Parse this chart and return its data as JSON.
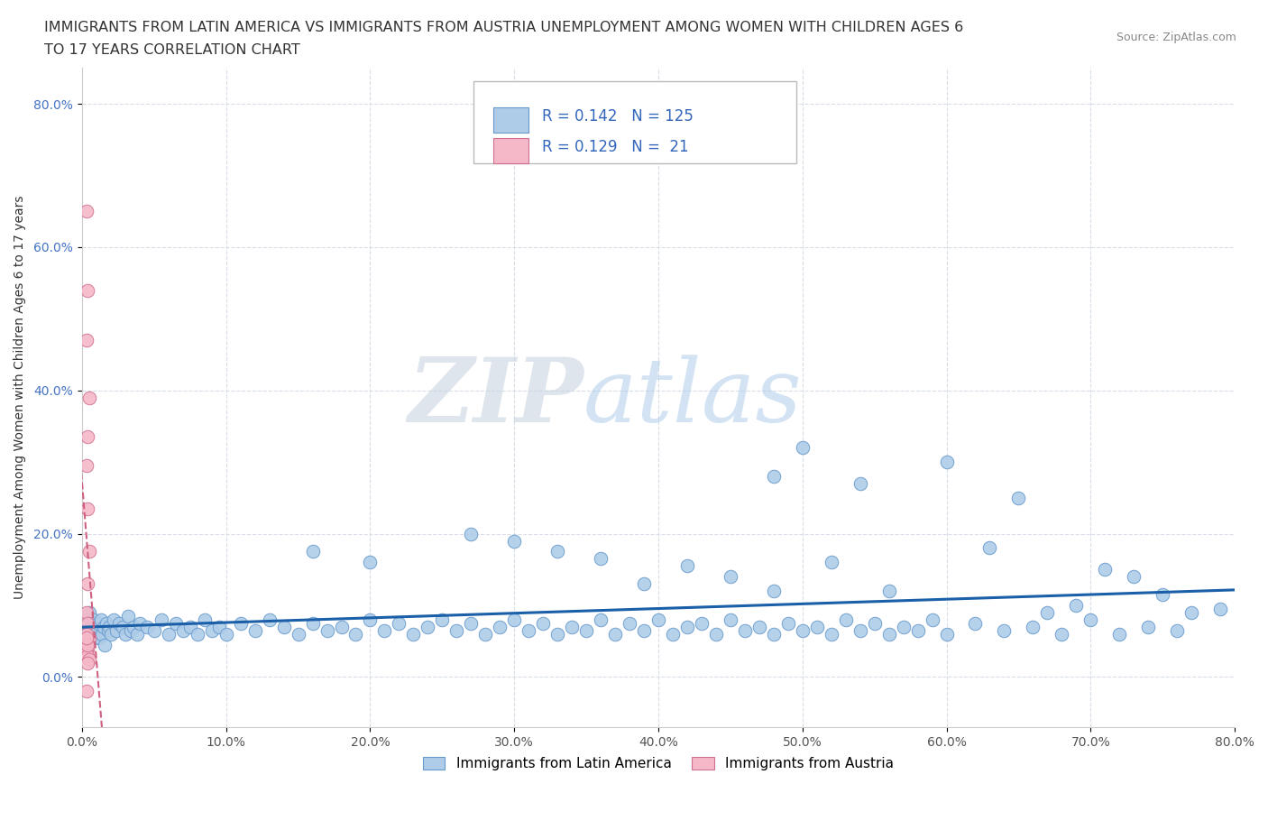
{
  "title_line1": "IMMIGRANTS FROM LATIN AMERICA VS IMMIGRANTS FROM AUSTRIA UNEMPLOYMENT AMONG WOMEN WITH CHILDREN AGES 6",
  "title_line2": "TO 17 YEARS CORRELATION CHART",
  "source_text": "Source: ZipAtlas.com",
  "ylabel": "Unemployment Among Women with Children Ages 6 to 17 years",
  "xlabel_blue": "Immigrants from Latin America",
  "xlabel_pink": "Immigrants from Austria",
  "R_blue": 0.142,
  "N_blue": 125,
  "R_pink": 0.129,
  "N_pink": 21,
  "blue_color": "#aecce8",
  "blue_edge_color": "#6699cc",
  "blue_line_color": "#1a5fa8",
  "pink_color": "#f5b8c8",
  "pink_edge_color": "#d07090",
  "pink_line_color": "#d06080",
  "grid_color": "#d8dde8",
  "watermark_color": "#dce5f0",
  "xlim": [
    0.0,
    0.8
  ],
  "ylim": [
    -0.07,
    0.85
  ],
  "xticks": [
    0.0,
    0.1,
    0.2,
    0.3,
    0.4,
    0.5,
    0.6,
    0.7,
    0.8
  ],
  "yticks": [
    0.0,
    0.2,
    0.4,
    0.6,
    0.8
  ],
  "blue_x": [
    0.001,
    0.002,
    0.003,
    0.004,
    0.005,
    0.006,
    0.007,
    0.008,
    0.009,
    0.01,
    0.011,
    0.012,
    0.013,
    0.014,
    0.015,
    0.016,
    0.017,
    0.018,
    0.019,
    0.02,
    0.022,
    0.024,
    0.026,
    0.028,
    0.03,
    0.032,
    0.034,
    0.036,
    0.038,
    0.04,
    0.045,
    0.05,
    0.055,
    0.06,
    0.065,
    0.07,
    0.075,
    0.08,
    0.085,
    0.09,
    0.095,
    0.1,
    0.11,
    0.12,
    0.13,
    0.14,
    0.15,
    0.16,
    0.17,
    0.18,
    0.19,
    0.2,
    0.21,
    0.22,
    0.23,
    0.24,
    0.25,
    0.26,
    0.27,
    0.28,
    0.29,
    0.3,
    0.31,
    0.32,
    0.33,
    0.34,
    0.35,
    0.36,
    0.37,
    0.38,
    0.39,
    0.4,
    0.41,
    0.42,
    0.43,
    0.44,
    0.45,
    0.46,
    0.47,
    0.48,
    0.49,
    0.5,
    0.51,
    0.52,
    0.53,
    0.54,
    0.55,
    0.56,
    0.57,
    0.58,
    0.59,
    0.6,
    0.62,
    0.64,
    0.66,
    0.68,
    0.7,
    0.72,
    0.74,
    0.76,
    0.48,
    0.5,
    0.52,
    0.54,
    0.56,
    0.6,
    0.63,
    0.65,
    0.67,
    0.69,
    0.71,
    0.73,
    0.75,
    0.77,
    0.79,
    0.27,
    0.3,
    0.33,
    0.36,
    0.39,
    0.42,
    0.45,
    0.48,
    0.16,
    0.2
  ],
  "blue_y": [
    0.07,
    0.06,
    0.08,
    0.05,
    0.09,
    0.06,
    0.07,
    0.08,
    0.055,
    0.065,
    0.075,
    0.055,
    0.08,
    0.06,
    0.07,
    0.045,
    0.075,
    0.065,
    0.07,
    0.06,
    0.08,
    0.065,
    0.075,
    0.07,
    0.06,
    0.085,
    0.065,
    0.07,
    0.06,
    0.075,
    0.07,
    0.065,
    0.08,
    0.06,
    0.075,
    0.065,
    0.07,
    0.06,
    0.08,
    0.065,
    0.07,
    0.06,
    0.075,
    0.065,
    0.08,
    0.07,
    0.06,
    0.075,
    0.065,
    0.07,
    0.06,
    0.08,
    0.065,
    0.075,
    0.06,
    0.07,
    0.08,
    0.065,
    0.075,
    0.06,
    0.07,
    0.08,
    0.065,
    0.075,
    0.06,
    0.07,
    0.065,
    0.08,
    0.06,
    0.075,
    0.065,
    0.08,
    0.06,
    0.07,
    0.075,
    0.06,
    0.08,
    0.065,
    0.07,
    0.06,
    0.075,
    0.065,
    0.07,
    0.06,
    0.08,
    0.065,
    0.075,
    0.06,
    0.07,
    0.065,
    0.08,
    0.06,
    0.075,
    0.065,
    0.07,
    0.06,
    0.08,
    0.06,
    0.07,
    0.065,
    0.28,
    0.32,
    0.16,
    0.27,
    0.12,
    0.3,
    0.18,
    0.25,
    0.09,
    0.1,
    0.15,
    0.14,
    0.115,
    0.09,
    0.095,
    0.2,
    0.19,
    0.175,
    0.165,
    0.13,
    0.155,
    0.14,
    0.12,
    0.175,
    0.16
  ],
  "pink_x": [
    0.003,
    0.004,
    0.003,
    0.005,
    0.004,
    0.003,
    0.004,
    0.005,
    0.004,
    0.003,
    0.004,
    0.005,
    0.003,
    0.004,
    0.003,
    0.004,
    0.005,
    0.004,
    0.003,
    0.004,
    0.003
  ],
  "pink_y": [
    0.65,
    0.54,
    0.47,
    0.39,
    0.335,
    0.295,
    0.235,
    0.175,
    0.13,
    0.09,
    0.075,
    0.055,
    0.06,
    0.04,
    0.035,
    0.03,
    0.025,
    0.02,
    -0.02,
    0.045,
    0.055
  ]
}
